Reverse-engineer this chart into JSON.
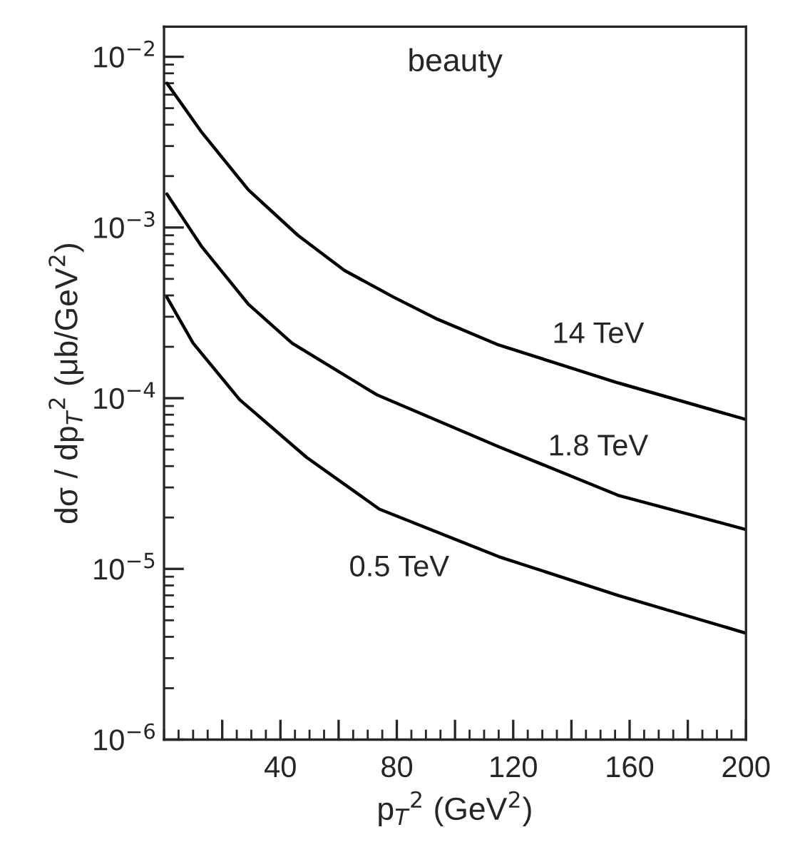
{
  "chart_data": {
    "type": "line",
    "title": "beauty",
    "xlabel": "p$_{T}$$^{2}$ (GeV$^{2}$)",
    "ylabel": "dσ / dp$_{T}$$^{2}$ (μb/GeV$^{2}$)",
    "x": [
      1,
      13,
      29,
      46,
      62,
      79,
      94,
      115,
      156,
      200
    ],
    "series": [
      {
        "name": "14 TeV",
        "color": "#000000",
        "values": [
          0.007,
          0.0036,
          0.00166,
          0.0009,
          0.00056,
          0.00039,
          0.00029,
          0.000205,
          0.000123,
          7.5e-05
        ]
      },
      {
        "name": "1.8 TeV",
        "color": "#000000",
        "x": [
          1,
          13,
          29,
          44,
          73,
          115,
          156,
          200
        ],
        "values": [
          0.00157,
          0.00077,
          0.000355,
          0.00021,
          0.000105,
          5.2e-05,
          2.7e-05,
          1.7e-05
        ]
      },
      {
        "name": "0.5 TeV",
        "color": "#000000",
        "x": [
          1,
          10,
          26,
          49,
          74,
          115,
          156,
          200
        ],
        "values": [
          0.00039,
          0.00021,
          9.8e-05,
          4.5e-05,
          2.24e-05,
          1.18e-05,
          7e-06,
          4.2e-06
        ]
      }
    ],
    "log": "y",
    "xlim": [
      0,
      200
    ],
    "ylim": [
      1e-06,
      0.015
    ],
    "xticks": [
      {
        "value": 20,
        "label": null
      },
      40,
      {
        "value": 60,
        "label": null
      },
      80,
      {
        "value": 100,
        "label": null
      },
      120,
      {
        "value": 140,
        "label": null
      },
      160,
      {
        "value": 180,
        "label": null
      },
      200
    ],
    "yticks": [
      {
        "value": 1e-06,
        "label": "10$^{−6}$"
      },
      {
        "value": 1e-05,
        "label": "10$^{−5}$"
      },
      {
        "value": 0.0001,
        "label": "10$^{−4}$"
      },
      {
        "value": 0.001,
        "label": "10$^{−3}$"
      },
      {
        "value": 0.01,
        "label": "10$^{−2}$"
      }
    ],
    "grid": false,
    "legend": false,
    "marker": "none",
    "line_style": "solid"
  }
}
